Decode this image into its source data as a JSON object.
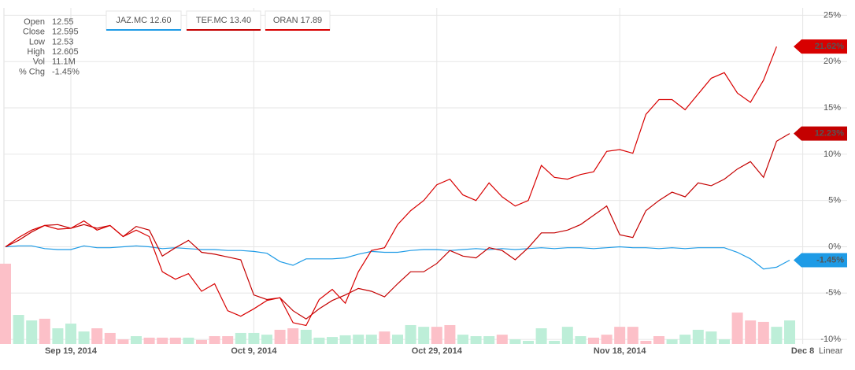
{
  "chart_data": {
    "type": "line",
    "categories": [
      null,
      null,
      null,
      null,
      null,
      "Sep 19, 2014",
      null,
      null,
      null,
      null,
      null,
      null,
      null,
      null,
      null,
      null,
      null,
      null,
      null,
      "Oct 9, 2014",
      null,
      null,
      null,
      null,
      null,
      null,
      null,
      null,
      null,
      null,
      null,
      null,
      null,
      "Oct 29, 2014",
      null,
      null,
      null,
      null,
      null,
      null,
      null,
      null,
      null,
      null,
      null,
      null,
      null,
      "Nov 18, 2014",
      null,
      null,
      null,
      null,
      null,
      null,
      null,
      null,
      null,
      null,
      null,
      null,
      null,
      "Dec 8"
    ],
    "ylim": [
      -10.5,
      25.8
    ],
    "yticks": [
      {
        "value": 25,
        "label": "25%"
      },
      {
        "value": 20,
        "label": "20%"
      },
      {
        "value": 15,
        "label": "15%"
      },
      {
        "value": 10,
        "label": "10%"
      },
      {
        "value": 5,
        "label": "5%"
      },
      {
        "value": 0,
        "label": "0%"
      },
      {
        "value": -5,
        "label": "-5%"
      },
      {
        "value": -10,
        "label": "-10%"
      }
    ],
    "grid": true,
    "scale_label": "Linear",
    "series": [
      {
        "name": "JAZ.MC 12.60",
        "color": "#1e9be6",
        "end_label": "-1.45%",
        "values": [
          0,
          0.1,
          0.1,
          -0.2,
          -0.3,
          -0.3,
          0.1,
          -0.1,
          -0.1,
          0,
          0.1,
          0,
          -0.2,
          -0.1,
          -0.2,
          -0.3,
          -0.3,
          -0.4,
          -0.4,
          -0.5,
          -0.7,
          -1.6,
          -2.0,
          -1.3,
          -1.3,
          -1.3,
          -1.2,
          -0.8,
          -0.5,
          -0.6,
          -0.6,
          -0.4,
          -0.3,
          -0.3,
          -0.4,
          -0.3,
          -0.2,
          -0.3,
          -0.2,
          -0.3,
          -0.2,
          -0.1,
          -0.2,
          -0.1,
          -0.1,
          -0.2,
          -0.1,
          0,
          -0.1,
          -0.1,
          -0.2,
          -0.1,
          -0.2,
          -0.1,
          -0.1,
          -0.1,
          -0.6,
          -1.3,
          -2.4,
          -2.2,
          -1.45,
          null
        ]
      },
      {
        "name": "TEF.MC 13.40",
        "color": "#c40000",
        "end_label": "12.23%",
        "values": [
          0,
          0.7,
          1.6,
          2.3,
          2.4,
          2.0,
          2.4,
          2.0,
          2.3,
          1.1,
          2.2,
          1.8,
          -1.0,
          -0.1,
          0.7,
          -0.6,
          -0.8,
          -1.1,
          -1.4,
          -5.2,
          -5.7,
          -5.5,
          -6.9,
          -7.8,
          -6.7,
          -5.8,
          -5.2,
          -4.5,
          -4.8,
          -5.4,
          -4.0,
          -2.7,
          -2.7,
          -1.8,
          -0.4,
          -1.0,
          -1.2,
          -0.1,
          -0.4,
          -1.4,
          -0.1,
          1.5,
          1.5,
          1.8,
          2.4,
          3.4,
          4.4,
          1.3,
          1.0,
          3.9,
          5.0,
          5.9,
          5.4,
          6.9,
          6.6,
          7.3,
          8.4,
          9.2,
          7.5,
          11.4,
          12.23,
          null
        ]
      },
      {
        "name": "ORAN 17.89",
        "color": "#d80000",
        "end_label": "21.62%",
        "values": [
          0,
          1.0,
          1.8,
          2.3,
          1.9,
          2.0,
          2.8,
          1.8,
          2.3,
          1.1,
          1.8,
          1.1,
          -2.7,
          -3.5,
          -2.9,
          -4.8,
          -4.0,
          -6.9,
          -7.5,
          -6.7,
          -5.8,
          -5.5,
          -8.2,
          -8.5,
          -5.7,
          -4.6,
          -6.1,
          -2.7,
          -0.4,
          -0.1,
          2.4,
          3.9,
          5.0,
          6.7,
          7.3,
          5.6,
          5.0,
          6.9,
          5.4,
          4.4,
          5.0,
          8.8,
          7.5,
          7.3,
          7.8,
          8.1,
          10.3,
          10.5,
          10.1,
          14.3,
          15.9,
          15.9,
          14.8,
          16.5,
          18.2,
          18.8,
          16.6,
          15.6,
          18.0,
          21.62,
          null,
          null
        ]
      }
    ],
    "volume": {
      "up_color": "#bdeed8",
      "down_color": "#fcc0c8",
      "values": [
        37.8,
        13.7,
        11.1,
        11.9,
        7.4,
        9.6,
        5.9,
        7.4,
        5.2,
        2.2,
        3.7,
        3.0,
        3.0,
        3.0,
        3.0,
        1.9,
        3.7,
        3.7,
        5.2,
        5.2,
        4.4,
        6.7,
        7.4,
        6.7,
        3.0,
        3.3,
        4.1,
        4.4,
        4.4,
        5.9,
        4.4,
        8.9,
        8.1,
        8.1,
        8.9,
        4.4,
        3.7,
        3.7,
        4.4,
        2.2,
        1.5,
        7.4,
        1.5,
        8.1,
        3.7,
        3.0,
        4.4,
        8.1,
        8.1,
        1.5,
        3.7,
        2.2,
        4.4,
        6.7,
        5.9,
        2.2,
        14.8,
        11.1,
        10.4,
        8.1,
        11.1,
        null
      ],
      "directions": [
        "down",
        "up",
        "up",
        "down",
        "up",
        "up",
        "up",
        "down",
        "down",
        "down",
        "up",
        "down",
        "down",
        "down",
        "up",
        "down",
        "down",
        "down",
        "up",
        "up",
        "up",
        "down",
        "down",
        "up",
        "up",
        "up",
        "up",
        "up",
        "up",
        "down",
        "up",
        "up",
        "up",
        "down",
        "down",
        "up",
        "up",
        "up",
        "down",
        "up",
        "up",
        "up",
        "up",
        "up",
        "up",
        "down",
        "down",
        "down",
        "down",
        "down",
        "down",
        "up",
        "up",
        "up",
        "up",
        "up",
        "down",
        "down",
        "down",
        "up",
        "up",
        null
      ]
    }
  },
  "info_panel": {
    "rows": [
      {
        "label": "Open",
        "value": "12.55"
      },
      {
        "label": "Close",
        "value": "12.595"
      },
      {
        "label": "Low",
        "value": "12.53"
      },
      {
        "label": "High",
        "value": "12.605"
      },
      {
        "label": "Vol",
        "value": "11.1M"
      },
      {
        "label": "% Chg",
        "value": "-1.45%"
      }
    ]
  }
}
